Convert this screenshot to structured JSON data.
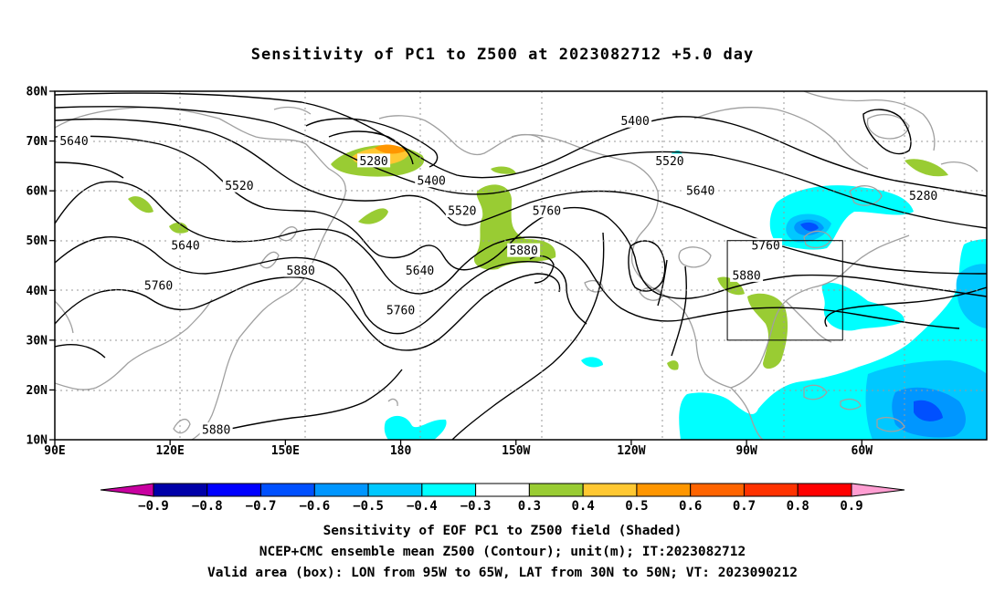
{
  "title": "Sensitivity of PC1 to Z500 at 2023082712 +5.0 day",
  "map": {
    "lat_labels": [
      "80N",
      "70N",
      "60N",
      "50N",
      "40N",
      "30N",
      "20N",
      "10N"
    ],
    "lon_labels": [
      "90E",
      "120E",
      "150E",
      "180",
      "150W",
      "120W",
      "90W",
      "60W"
    ],
    "contour_labels": [
      {
        "text": "5640",
        "lon": 95,
        "lat": 70
      },
      {
        "text": "5520",
        "lon": 138,
        "lat": 61
      },
      {
        "text": "5640",
        "lon": 124,
        "lat": 49
      },
      {
        "text": "5760",
        "lon": 117,
        "lat": 41
      },
      {
        "text": "5880",
        "lon": 154,
        "lat": 44
      },
      {
        "text": "5880",
        "lon": 132,
        "lat": 12
      },
      {
        "text": "5280",
        "lon": 173,
        "lat": 66
      },
      {
        "text": "5400",
        "lon": 188,
        "lat": 62
      },
      {
        "text": "5520",
        "lon": 196,
        "lat": 56
      },
      {
        "text": "5640",
        "lon": 185,
        "lat": 44
      },
      {
        "text": "5760",
        "lon": 180,
        "lat": 36
      },
      {
        "text": "5880",
        "lon": 212,
        "lat": 48
      },
      {
        "text": "5760",
        "lon": 218,
        "lat": 56
      },
      {
        "text": "5400",
        "lon": 241,
        "lat": 74
      },
      {
        "text": "5520",
        "lon": 250,
        "lat": 66
      },
      {
        "text": "5640",
        "lon": 258,
        "lat": 60
      },
      {
        "text": "5760",
        "lon": 275,
        "lat": 49
      },
      {
        "text": "5880",
        "lon": 270,
        "lat": 43
      },
      {
        "text": "5280",
        "lon": 316,
        "lat": 59
      }
    ],
    "valid_box": {
      "lon_min": 265,
      "lon_max": 295,
      "lat_min": 30,
      "lat_max": 50
    }
  },
  "colorbar": {
    "labels": [
      "−0.9",
      "−0.8",
      "−0.7",
      "−0.6",
      "−0.5",
      "−0.4",
      "−0.3",
      "0.3",
      "0.4",
      "0.5",
      "0.6",
      "0.7",
      "0.8",
      "0.9"
    ],
    "colors": [
      "#0000a8",
      "#0000ff",
      "#0050ff",
      "#0096ff",
      "#00c8ff",
      "#00ffff",
      "#ffffff",
      "#99cc33",
      "#ffc832",
      "#ff9600",
      "#ff6400",
      "#ff3200",
      "#ff0000"
    ],
    "low_color": "#c800a0",
    "high_color": "#ff9ed2"
  },
  "caption": [
    "Sensitivity of EOF PC1 to Z500 field (Shaded)",
    "NCEP+CMC ensemble mean Z500 (Contour); unit(m); IT:2023082712",
    "Valid area (box): LON from 95W to 65W, LAT from 30N to 50N; VT: 2023090212"
  ]
}
